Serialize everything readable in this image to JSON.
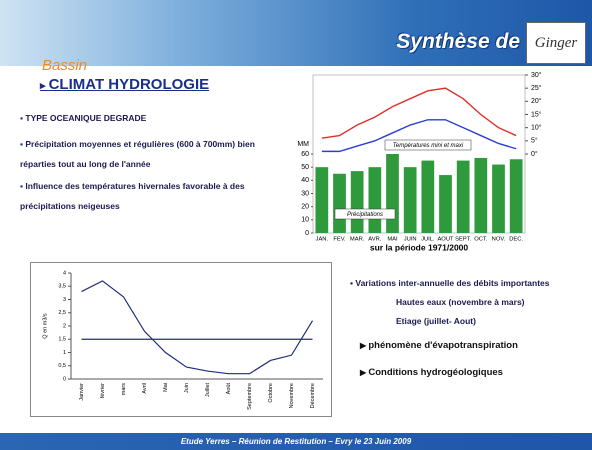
{
  "header": {
    "title": "Synthèse de",
    "logo": "Ginger"
  },
  "section": {
    "kicker": "Bassin",
    "title": "CLIMAT HYDROLOGIE"
  },
  "bullets": [
    "TYPE OCEANIQUE DEGRADE",
    "Précipitation moyennes et régulières (600 à 700mm) bien réparties tout au long de l'année",
    "Influence des températures hivernales favorable à des précipitations neigeuses"
  ],
  "notes": {
    "main": "Variations inter-annuelle des débits importantes",
    "sub": [
      "Hautes eaux (novembre à mars)",
      "Etiage (juillet- Aout)"
    ],
    "arrows": [
      "phénomène d'évapotranspiration",
      "Conditions hydrogéologiques"
    ]
  },
  "footer": "Etude Yerres – Réunion de Restitution – Evry le 23 Juin 2009",
  "chart_data": [
    {
      "type": "bar",
      "ylabel": "MM",
      "xlabel": "sur la période 1971/2000",
      "categories": [
        "JAN.",
        "FEV.",
        "MAR.",
        "AVR.",
        "MAI",
        "JUIN",
        "JUIL.",
        "AOUT",
        "SEPT.",
        "OCT.",
        "NOV.",
        "DEC."
      ],
      "series": [
        {
          "color": "#2f9a3c",
          "values": [
            50,
            45,
            47,
            50,
            60,
            50,
            55,
            44,
            55,
            57,
            52,
            56
          ]
        },
        {
          "color": "#e0302a",
          "axis": "y2",
          "values": [
            6,
            7,
            11,
            14,
            18,
            21,
            24,
            25,
            21,
            15,
            10,
            7
          ]
        },
        {
          "color": "#2a3fd0",
          "axis": "y2",
          "values": [
            1,
            1,
            3,
            5,
            8,
            11,
            13,
            13,
            10,
            7,
            4,
            2
          ]
        }
      ],
      "ylim": [
        0,
        120
      ],
      "yticks": [
        0,
        10,
        20,
        30,
        40,
        50,
        60
      ],
      "y2lim": [
        -30,
        30
      ],
      "y2ticks": [
        {
          "value": 0,
          "label": "0°"
        },
        {
          "value": 5,
          "label": "5°"
        },
        {
          "value": 10,
          "label": "10°"
        },
        {
          "value": 15,
          "label": "15°"
        },
        {
          "value": 20,
          "label": "20°"
        },
        {
          "value": 25,
          "label": "25°"
        },
        {
          "value": 30,
          "label": "30°"
        }
      ],
      "annotations": [
        "Températures mini et maxi",
        "Précipitations"
      ]
    },
    {
      "type": "line",
      "ylabel": "Q en m3/s",
      "categories": [
        "Janvier",
        "février",
        "mars",
        "Avril",
        "Mai",
        "Juin",
        "Juillet",
        "Août",
        "Septembre",
        "Octobre",
        "Novembre",
        "Décembre"
      ],
      "series": [
        {
          "color": "#1f2f7a",
          "values": [
            3.3,
            3.7,
            3.1,
            1.8,
            1.0,
            0.45,
            0.3,
            0.2,
            0.2,
            0.7,
            0.9,
            2.2
          ]
        },
        {
          "color": "#1f2f7a",
          "values": [
            1.5,
            1.5,
            1.5,
            1.5,
            1.5,
            1.5,
            1.5,
            1.5,
            1.5,
            1.5,
            1.5,
            1.5
          ]
        }
      ],
      "ylim": [
        0,
        4
      ],
      "yticks": [
        0,
        {
          "value": 0.5,
          "label": "0,5"
        },
        1,
        {
          "value": 1.5,
          "label": "1,5"
        },
        2,
        {
          "value": 2.5,
          "label": "2,5"
        },
        3,
        {
          "value": 3.5,
          "label": "3,5"
        },
        4
      ]
    }
  ]
}
